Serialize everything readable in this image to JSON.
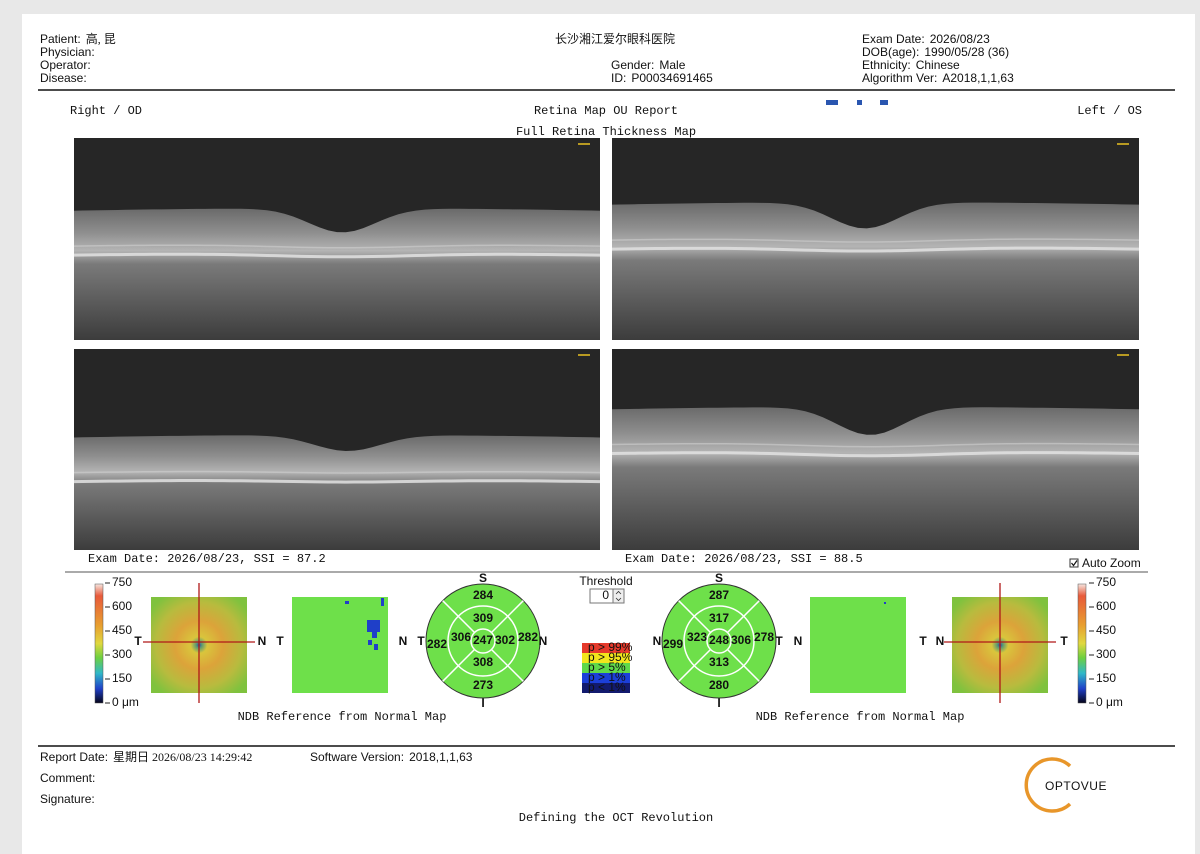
{
  "header": {
    "patient": {
      "label": "Patient:",
      "value": "高, 昆"
    },
    "physician": {
      "label": "Physician:"
    },
    "operator": {
      "label": "Operator:"
    },
    "disease": {
      "label": "Disease:"
    },
    "hospital": "长沙湘江爱尔眼科医院",
    "gender": {
      "label": "Gender:",
      "value": "Male"
    },
    "id": {
      "label": "ID:",
      "value": "P00034691465"
    },
    "exam_date": {
      "label": "Exam Date:",
      "value": "2026/08/23"
    },
    "dob": {
      "label": "DOB(age):",
      "value": "1990/05/28 (36)"
    },
    "ethnicity": {
      "label": "Ethnicity:",
      "value": "Chinese"
    },
    "algorithm": {
      "label": "Algorithm Ver:",
      "value": "A2018,1,1,63"
    }
  },
  "report": {
    "title": "Retina Map OU Report",
    "subtitle": "Full Retina Thickness Map",
    "right_eye": "Right / OD",
    "left_eye": "Left / OS"
  },
  "scans": {
    "right": "Exam Date: 2026/08/23, SSI = 87.2",
    "left": "Exam Date: 2026/08/23, SSI = 88.5",
    "auto_zoom": "Auto Zoom"
  },
  "thickness_scale": [
    "750",
    "600",
    "450",
    "300",
    "150",
    "0 μm"
  ],
  "orientation": {
    "temporal": "T",
    "nasal": "N",
    "superior": "S",
    "inferior": "I"
  },
  "right_map": {
    "sectors": {
      "superior_outer": 284,
      "superior_inner": 309,
      "temporal_outer": 282,
      "temporal_inner": 306,
      "center": 247,
      "nasal_inner": 302,
      "nasal_outer": 282,
      "inferior_inner": 308,
      "inferior_outer": 273
    }
  },
  "left_map": {
    "sectors": {
      "superior_outer": 287,
      "superior_inner": 317,
      "nasal_outer": 299,
      "nasal_inner": 323,
      "center": 248,
      "temporal_inner": 306,
      "temporal_outer": 278,
      "inferior_inner": 313,
      "inferior_outer": 280
    }
  },
  "threshold": {
    "label": "Threshold",
    "value": 0
  },
  "significance_legend": [
    {
      "label": "p > 99%",
      "color": "#e53a2c"
    },
    {
      "label": "p > 95%",
      "color": "#f2e61c"
    },
    {
      "label": "p > 5%",
      "color": "#5fd84a"
    },
    {
      "label": "p > 1%",
      "color": "#1c3fd8"
    },
    {
      "label": "p < 1%",
      "color": "#121a6e"
    }
  ],
  "ndb_caption": "NDB Reference from Normal Map",
  "footer": {
    "report_date": {
      "label": "Report Date:",
      "value": "星期日 2026/08/23 14:29:42"
    },
    "software_version": {
      "label": "Software Version:",
      "value": "2018,1,1,63"
    },
    "comment": {
      "label": "Comment:"
    },
    "signature": {
      "label": "Signature:"
    },
    "tagline": "Defining the OCT Revolution",
    "logo": "OPTOVUE"
  }
}
